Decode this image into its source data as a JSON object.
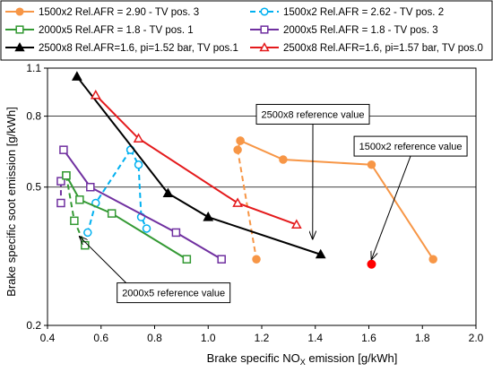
{
  "chart_data": {
    "type": "line",
    "xlabel_parts": [
      "Brake specific NO",
      "X",
      " emission [g/kWh]"
    ],
    "ylabel": "Brake specific soot emission [g/kWh]",
    "xlim": [
      0.4,
      2.0
    ],
    "ylim": [
      0.2,
      1.1
    ],
    "x_ticks": [
      "0.4",
      "0.6",
      "0.8",
      "1.0",
      "1.2",
      "1.4",
      "1.6",
      "1.8",
      "2.0"
    ],
    "y_ticks": [
      "0.2",
      "0.5",
      "0.8",
      "1.1"
    ],
    "y_tick_values": [
      0.2,
      0.5,
      0.8,
      1.1
    ],
    "y_scale": "log",
    "grid": "horizontal",
    "legend_position": "top",
    "series": [
      {
        "name": "1500x2 Rel.AFR = 2.90 - TV pos. 3",
        "color": "#f79646",
        "marker": "circle-filled",
        "dash": "solid",
        "x": [
          1.12,
          1.28,
          1.61,
          1.84
        ],
        "y": [
          0.68,
          0.6,
          0.58,
          0.31
        ]
      },
      {
        "name": "1500x2 Rel.AFR = 2.62 - TV pos. 2",
        "color": "#00b0f0",
        "marker": "circle-open",
        "dash": "dashed",
        "x": [
          0.71,
          0.74,
          0.75,
          0.77
        ],
        "y": [
          0.64,
          0.58,
          0.41,
          0.38
        ]
      },
      {
        "name": "2000x5 Rel.AFR = 1.8 - TV pos. 1",
        "color": "#339933",
        "marker": "square-open",
        "dash": "solid",
        "x": [
          0.47,
          0.52,
          0.64,
          0.92
        ],
        "y": [
          0.54,
          0.46,
          0.42,
          0.31
        ]
      },
      {
        "name": "2000x5 Rel.AFR = 1.8 - TV pos. 3",
        "color": "#7030a0",
        "marker": "square-open",
        "dash": "solid",
        "x": [
          0.46,
          0.56,
          0.88,
          1.05
        ],
        "y": [
          0.64,
          0.5,
          0.37,
          0.31
        ]
      },
      {
        "name": "2500x8 Rel.AFR=1.6, pi=1.52 bar, TV pos.1",
        "color": "#000000",
        "marker": "triangle-filled",
        "dash": "solid",
        "x": [
          0.51,
          0.85,
          1.0,
          1.42
        ],
        "y": [
          1.04,
          0.48,
          0.41,
          0.32
        ]
      },
      {
        "name": "2500x8 Rel.AFR=1.6, pi=1.57 bar, TV pos.0",
        "color": "#e41a1c",
        "marker": "triangle-open",
        "dash": "solid",
        "x": [
          0.58,
          0.74,
          1.11,
          1.33
        ],
        "y": [
          0.92,
          0.69,
          0.45,
          0.39
        ]
      }
    ],
    "extra_series": [
      {
        "color": "#f79646",
        "marker": "circle-filled",
        "dash": "dashed",
        "x": [
          1.12,
          1.11,
          1.18
        ],
        "y": [
          0.68,
          0.64,
          0.31
        ]
      },
      {
        "color": "#00b0f0",
        "marker": "circle-open",
        "dash": "dashed",
        "x": [
          0.71,
          0.58,
          0.55
        ],
        "y": [
          0.64,
          0.45,
          0.37
        ]
      },
      {
        "color": "#339933",
        "marker": "square-open",
        "dash": "dashed",
        "x": [
          0.47,
          0.5,
          0.54
        ],
        "y": [
          0.54,
          0.4,
          0.34
        ]
      },
      {
        "color": "#7030a0",
        "marker": "square-open",
        "dash": "dashed",
        "x": [
          0.45,
          0.45
        ],
        "y": [
          0.52,
          0.45
        ]
      }
    ],
    "reference_point": {
      "x": 1.61,
      "y": 0.3,
      "color": "#ff0000"
    },
    "annotations": [
      {
        "text": "2500x8 reference value",
        "box_x": 1.18,
        "box_y": 0.865,
        "arrow_to_x": 1.39,
        "arrow_to_y": 0.355
      },
      {
        "text": "1500x2 reference value",
        "box_x": 1.545,
        "box_y": 0.7,
        "arrow_to_x": 1.61,
        "arrow_to_y": 0.31
      },
      {
        "text": "2000x5 reference value",
        "box_x": 0.66,
        "box_y": 0.265,
        "arrow_to_x": 0.52,
        "arrow_to_y": 0.36
      }
    ]
  }
}
